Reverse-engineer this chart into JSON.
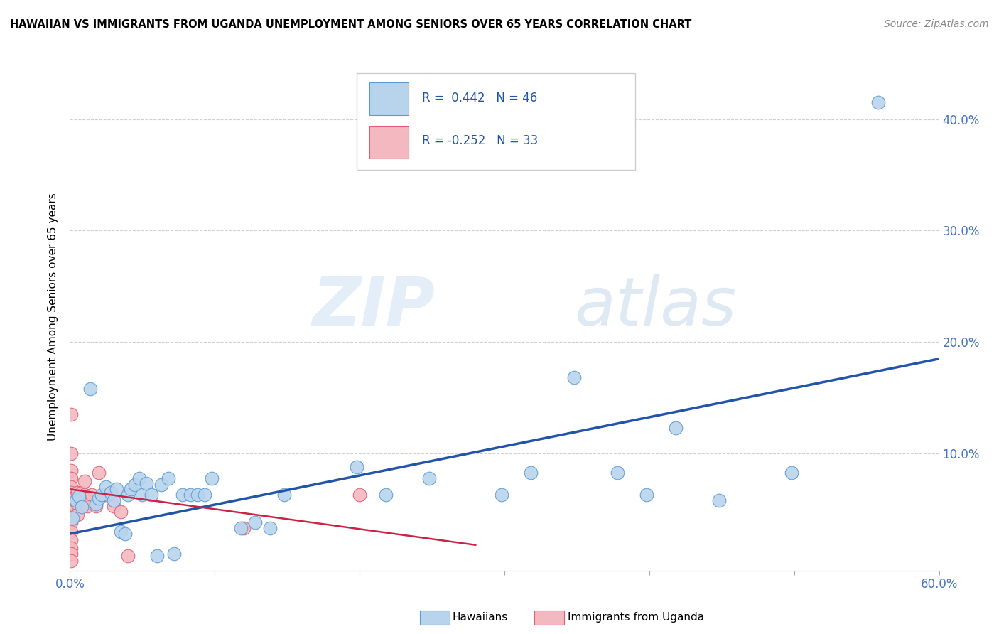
{
  "title": "HAWAIIAN VS IMMIGRANTS FROM UGANDA UNEMPLOYMENT AMONG SENIORS OVER 65 YEARS CORRELATION CHART",
  "source": "Source: ZipAtlas.com",
  "ylabel": "Unemployment Among Seniors over 65 years",
  "watermark_zip": "ZIP",
  "watermark_atlas": "atlas",
  "xlim": [
    0.0,
    0.6
  ],
  "ylim": [
    -0.005,
    0.45
  ],
  "ytick_vals": [
    0.1,
    0.2,
    0.3,
    0.4
  ],
  "ytick_labels": [
    "10.0%",
    "20.0%",
    "30.0%",
    "40.0%"
  ],
  "hawaiians": {
    "color": "#b8d4ed",
    "edge_color": "#5b9bd5",
    "line_color": "#2255aa",
    "trend_x": [
      0.0,
      0.6
    ],
    "trend_y": [
      0.028,
      0.185
    ],
    "points": [
      [
        0.002,
        0.042
      ],
      [
        0.004,
        0.058
      ],
      [
        0.006,
        0.062
      ],
      [
        0.008,
        0.052
      ],
      [
        0.014,
        0.158
      ],
      [
        0.018,
        0.055
      ],
      [
        0.02,
        0.06
      ],
      [
        0.022,
        0.063
      ],
      [
        0.025,
        0.07
      ],
      [
        0.028,
        0.065
      ],
      [
        0.03,
        0.058
      ],
      [
        0.032,
        0.068
      ],
      [
        0.035,
        0.03
      ],
      [
        0.038,
        0.028
      ],
      [
        0.04,
        0.063
      ],
      [
        0.042,
        0.068
      ],
      [
        0.045,
        0.072
      ],
      [
        0.048,
        0.078
      ],
      [
        0.05,
        0.063
      ],
      [
        0.053,
        0.073
      ],
      [
        0.056,
        0.063
      ],
      [
        0.06,
        0.008
      ],
      [
        0.063,
        0.072
      ],
      [
        0.068,
        0.078
      ],
      [
        0.072,
        0.01
      ],
      [
        0.078,
        0.063
      ],
      [
        0.083,
        0.063
      ],
      [
        0.088,
        0.063
      ],
      [
        0.093,
        0.063
      ],
      [
        0.098,
        0.078
      ],
      [
        0.118,
        0.033
      ],
      [
        0.128,
        0.038
      ],
      [
        0.138,
        0.033
      ],
      [
        0.148,
        0.063
      ],
      [
        0.198,
        0.088
      ],
      [
        0.218,
        0.063
      ],
      [
        0.248,
        0.078
      ],
      [
        0.298,
        0.063
      ],
      [
        0.318,
        0.083
      ],
      [
        0.348,
        0.168
      ],
      [
        0.378,
        0.083
      ],
      [
        0.398,
        0.063
      ],
      [
        0.418,
        0.123
      ],
      [
        0.448,
        0.058
      ],
      [
        0.498,
        0.083
      ],
      [
        0.558,
        0.415
      ]
    ]
  },
  "uganda": {
    "color": "#f4b8c1",
    "edge_color": "#e06070",
    "line_color": "#cc2244",
    "trend_x": [
      0.0,
      0.28
    ],
    "trend_y": [
      0.068,
      0.018
    ],
    "points": [
      [
        0.001,
        0.135
      ],
      [
        0.001,
        0.1
      ],
      [
        0.001,
        0.085
      ],
      [
        0.001,
        0.078
      ],
      [
        0.001,
        0.07
      ],
      [
        0.001,
        0.065
      ],
      [
        0.001,
        0.06
      ],
      [
        0.001,
        0.055
      ],
      [
        0.001,
        0.048
      ],
      [
        0.001,
        0.043
      ],
      [
        0.001,
        0.038
      ],
      [
        0.001,
        0.03
      ],
      [
        0.001,
        0.022
      ],
      [
        0.001,
        0.015
      ],
      [
        0.001,
        0.01
      ],
      [
        0.001,
        0.004
      ],
      [
        0.005,
        0.065
      ],
      [
        0.005,
        0.055
      ],
      [
        0.005,
        0.045
      ],
      [
        0.008,
        0.065
      ],
      [
        0.008,
        0.055
      ],
      [
        0.01,
        0.075
      ],
      [
        0.01,
        0.063
      ],
      [
        0.012,
        0.053
      ],
      [
        0.015,
        0.063
      ],
      [
        0.018,
        0.053
      ],
      [
        0.02,
        0.083
      ],
      [
        0.025,
        0.063
      ],
      [
        0.03,
        0.053
      ],
      [
        0.035,
        0.048
      ],
      [
        0.04,
        0.008
      ],
      [
        0.12,
        0.033
      ],
      [
        0.2,
        0.063
      ]
    ]
  },
  "background_color": "#ffffff",
  "grid_color": "#d0d0d0",
  "figsize": [
    14.06,
    8.92
  ],
  "dpi": 100
}
